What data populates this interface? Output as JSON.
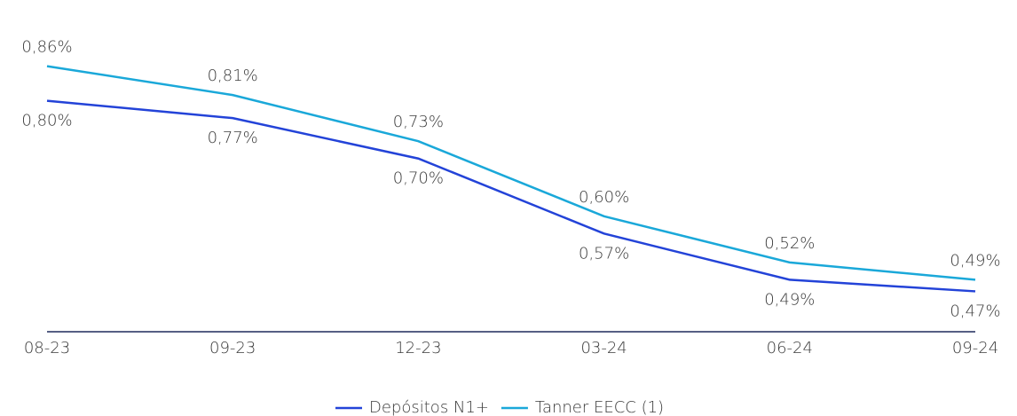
{
  "chart_data": {
    "type": "line",
    "categories": [
      "08-23",
      "09-23",
      "12-23",
      "03-24",
      "06-24",
      "09-24"
    ],
    "series": [
      {
        "name": "Depósitos N1+",
        "color": "#2343d8",
        "values": [
          0.8,
          0.77,
          0.7,
          0.57,
          0.49,
          0.47
        ],
        "value_labels": [
          "0,80%",
          "0,77%",
          "0,70%",
          "0,57%",
          "0,49%",
          "0,47%"
        ]
      },
      {
        "name": "Tanner EECC (1)",
        "color": "#1aa8d9",
        "values": [
          0.86,
          0.81,
          0.73,
          0.6,
          0.52,
          0.49
        ],
        "value_labels": [
          "0,86%",
          "0,81%",
          "0,73%",
          "0,60%",
          "0,52%",
          "0,49%"
        ]
      }
    ],
    "ylim": [
      0.4,
      0.95
    ],
    "legend": "bottom"
  }
}
